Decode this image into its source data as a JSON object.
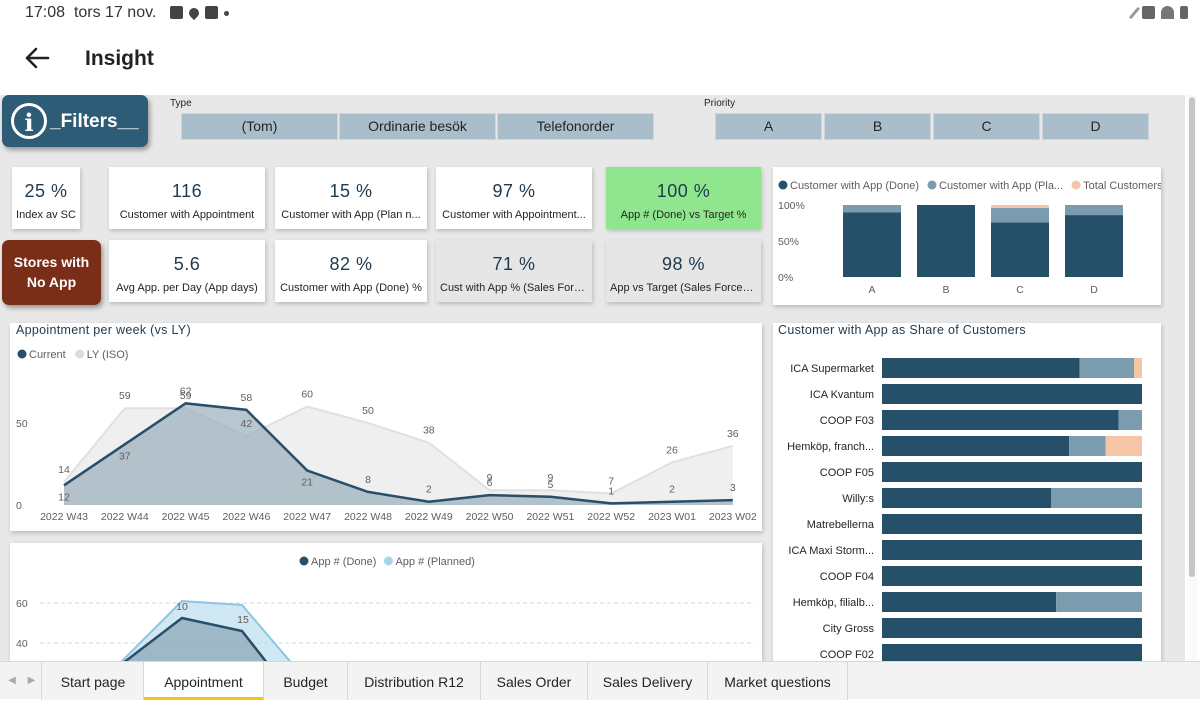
{
  "status": {
    "time": "17:08",
    "date": "tors 17 nov."
  },
  "app": {
    "title": "Insight"
  },
  "filters": {
    "label": "_Filters__",
    "info_glyph": "i",
    "type": {
      "title": "Type",
      "options": [
        "(Tom)",
        "Ordinarie besök",
        "Telefonorder"
      ]
    },
    "priority": {
      "title": "Priority",
      "options": [
        "A",
        "B",
        "C",
        "D"
      ]
    }
  },
  "stores_button": {
    "line1": "Stores with",
    "line2": "No App"
  },
  "kpis": [
    {
      "value": "25 %",
      "caption": "Index av SC"
    },
    {
      "value": "116",
      "caption": "Customer with Appointment"
    },
    {
      "value": "15 %",
      "caption": "Customer with App (Plan n..."
    },
    {
      "value": "97 %",
      "caption": "Customer with Appointment..."
    },
    {
      "value": "100 %",
      "caption": "App # (Done) vs Target %"
    },
    {
      "value": "5.6",
      "caption": "Avg App. per Day (App days)"
    },
    {
      "value": "82 %",
      "caption": "Customer with App (Done) %"
    },
    {
      "value": "71 %",
      "caption": "Cust with App % (Sales Force)"
    },
    {
      "value": "98 %",
      "caption": "App vs Target (Sales Force) %"
    }
  ],
  "colors": {
    "done": "#264f69",
    "planned": "#7b9cae",
    "total": "#f6c4a6",
    "current": "#264f69",
    "ly": "#e6e6e6",
    "app_planned": "#a9d5ea",
    "accent_tab": "#f2c811",
    "green_card": "#8fe68f",
    "stores_button": "#7a2d17"
  },
  "tabs": [
    "Start page",
    "Appointment",
    "Budget",
    "Distribution R12",
    "Sales Order",
    "Sales Delivery",
    "Market questions"
  ],
  "active_tab": "Appointment",
  "chart_data": [
    {
      "type": "bar",
      "stacked": true,
      "legend": [
        "Customer with App (Done)",
        "Customer with App (Pla...",
        "Total Customers"
      ],
      "legend_placement": "top",
      "categories": [
        "A",
        "B",
        "C",
        "D"
      ],
      "series": [
        {
          "name": "Customer with App (Done)",
          "values": [
            0.9,
            1.0,
            0.76,
            0.86
          ]
        },
        {
          "name": "Customer with App (Planned)",
          "values": [
            0.1,
            0.0,
            0.2,
            0.14
          ]
        },
        {
          "name": "Total Customers",
          "values": [
            0.0,
            0.0,
            0.04,
            0.0
          ]
        }
      ],
      "y_ticks": [
        "100%",
        "50%",
        "0%"
      ],
      "ylim": [
        0,
        1
      ]
    },
    {
      "type": "area",
      "title": "Appointment per week (vs LY)",
      "legend_placement": "top-left",
      "categories": [
        "2022 W43",
        "2022 W44",
        "2022 W45",
        "2022 W46",
        "2022 W47",
        "2022 W48",
        "2022 W49",
        "2022 W50",
        "2022 W51",
        "2022 W52",
        "2023 W01",
        "2023 W02"
      ],
      "series": [
        {
          "name": "Current",
          "values": [
            12,
            37,
            62,
            58,
            21,
            8,
            2,
            6,
            5,
            1,
            2,
            3
          ]
        },
        {
          "name": "LY (ISO)",
          "values": [
            14,
            59,
            59,
            42,
            60,
            50,
            38,
            9,
            9,
            7,
            26,
            36
          ]
        }
      ],
      "y_ticks": [
        "50",
        "0"
      ],
      "ylim": [
        0,
        72
      ]
    },
    {
      "type": "area",
      "legend_placement": "top",
      "series": [
        {
          "name": "App # (Done)",
          "visible_labels": [
            10
          ]
        },
        {
          "name": "App # (Planned)",
          "visible_labels": [
            15
          ]
        }
      ],
      "y_ticks": [
        "60",
        "40"
      ]
    },
    {
      "type": "bar",
      "orientation": "horizontal",
      "stacked": true,
      "title": "Customer with App as Share of Customers",
      "categories": [
        "ICA Supermarket",
        "ICA Kvantum",
        "COOP F03",
        "Hemköp, franch...",
        "COOP F05",
        "Willy:s",
        "Matrebellerna",
        "ICA Maxi Storm...",
        "COOP F04",
        "Hemköp, filialb...",
        "City Gross",
        "COOP F02"
      ],
      "series": [
        {
          "name": "Customer with App (Done)",
          "values": [
            0.76,
            1.0,
            0.91,
            0.72,
            1.0,
            0.65,
            1.0,
            1.0,
            1.0,
            0.67,
            1.0,
            1.0
          ]
        },
        {
          "name": "Customer with App (Planned)",
          "values": [
            0.21,
            0.0,
            0.09,
            0.14,
            0.0,
            0.35,
            0.0,
            0.0,
            0.0,
            0.33,
            0.0,
            0.0
          ]
        },
        {
          "name": "Total Customers",
          "values": [
            0.03,
            0.0,
            0.0,
            0.14,
            0.0,
            0.0,
            0.0,
            0.0,
            0.0,
            0.0,
            0.0,
            0.0
          ]
        }
      ]
    }
  ]
}
